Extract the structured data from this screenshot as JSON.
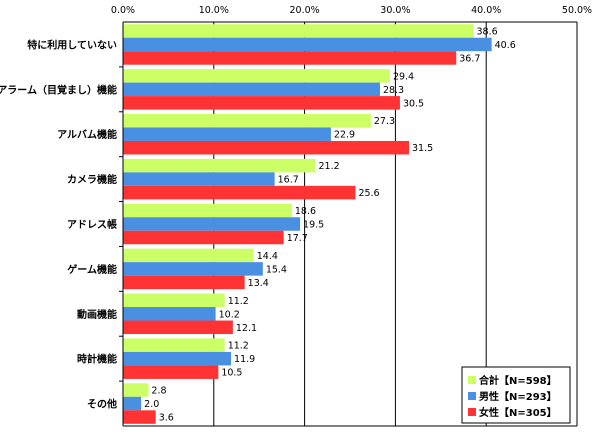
{
  "chart_data": {
    "type": "bar",
    "orientation": "horizontal",
    "categories": [
      "特に利用していない",
      "アラーム（目覚まし）機能",
      "アルバム機能",
      "カメラ機能",
      "アドレス帳",
      "ゲーム機能",
      "動画機能",
      "時計機能",
      "その他"
    ],
    "series": [
      {
        "name": "合計【N=598】",
        "color": "#ccff66",
        "values": [
          38.6,
          29.4,
          27.3,
          21.2,
          18.6,
          14.4,
          11.2,
          11.2,
          2.8
        ]
      },
      {
        "name": "男性【N=293】",
        "color": "#4a90e2",
        "values": [
          40.6,
          28.3,
          22.9,
          16.7,
          19.5,
          15.4,
          10.2,
          11.9,
          2.0
        ]
      },
      {
        "name": "女性【N=305】",
        "color": "#ff3333",
        "values": [
          36.7,
          30.5,
          31.5,
          25.6,
          17.7,
          13.4,
          12.1,
          10.5,
          3.6
        ]
      }
    ],
    "x_ticks": [
      "0.0%",
      "10.0%",
      "20.0%",
      "30.0%",
      "40.0%",
      "50.0%"
    ],
    "xlim": [
      0,
      50
    ],
    "grid": true,
    "legend_position": "bottom-right"
  }
}
